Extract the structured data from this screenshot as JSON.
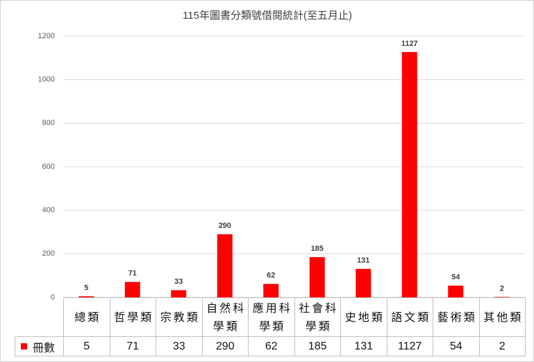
{
  "chart_data": {
    "type": "bar",
    "title": "115年圖書分類號借閱統計(至五月止)",
    "categories": [
      "總類",
      "哲學類",
      "宗教類",
      "自然科學類",
      "應用科學類",
      "社會科學類",
      "史地類",
      "語文類",
      "藝術類",
      "其他類"
    ],
    "series": [
      {
        "name": "冊數",
        "color": "#ff0000",
        "values": [
          5,
          71,
          33,
          290,
          62,
          185,
          131,
          1127,
          54,
          2
        ]
      }
    ],
    "ylim": [
      0,
      1200
    ],
    "yticks": [
      0,
      200,
      400,
      600,
      800,
      1000,
      1200
    ],
    "grid": true,
    "data_table": true
  }
}
